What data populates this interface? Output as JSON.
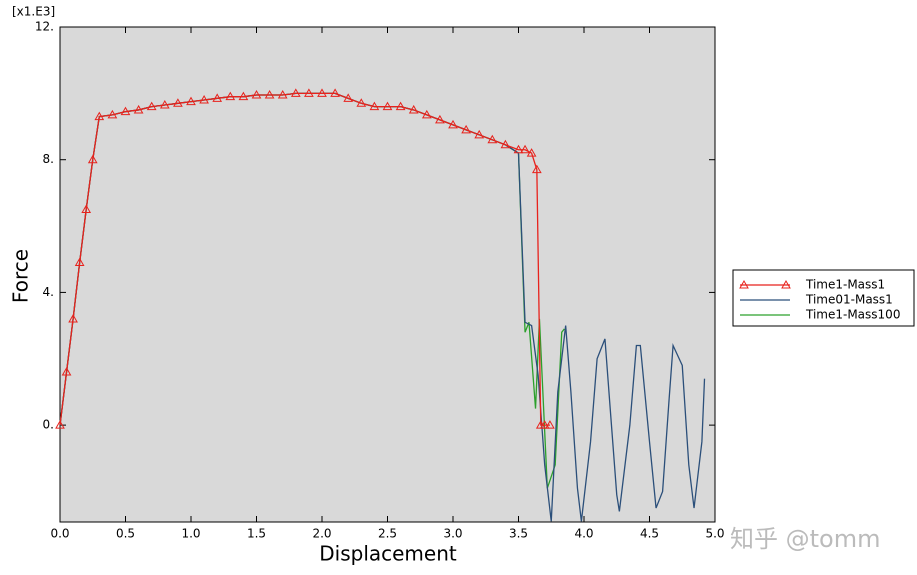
{
  "chart_data": {
    "type": "line",
    "y_scale_label": "[x1.E3]",
    "xlabel": "Displacement",
    "ylabel": "Force",
    "watermark": "知乎 @tomm",
    "xlim": [
      0,
      5
    ],
    "ylim": [
      -2.92,
      12
    ],
    "xticks": [
      {
        "value": 0,
        "label": "0.0"
      },
      0.5,
      {
        "value": 1,
        "label": "1.0"
      },
      1.5,
      {
        "value": 2,
        "label": "2.0"
      },
      2.5,
      {
        "value": 3,
        "label": "3.0"
      },
      3.5,
      {
        "value": 4,
        "label": "4.0"
      },
      4.5,
      {
        "value": 5,
        "label": "5.0"
      }
    ],
    "yticks": [
      {
        "value": 0,
        "label": "0."
      },
      {
        "value": 4,
        "label": "4."
      },
      {
        "value": 8,
        "label": "8."
      },
      {
        "value": 12,
        "label": "12."
      }
    ],
    "background": "#d9d9d9",
    "series": [
      {
        "name": "Time1-Mass1",
        "color": "#e8221c",
        "marker": "triangle",
        "x": [
          0,
          0.05,
          0.1,
          0.15,
          0.2,
          0.25,
          0.3,
          0.4,
          0.5,
          0.6,
          0.7,
          0.8,
          0.9,
          1.0,
          1.1,
          1.2,
          1.3,
          1.4,
          1.5,
          1.6,
          1.7,
          1.8,
          1.9,
          2.0,
          2.1,
          2.2,
          2.3,
          2.4,
          2.5,
          2.6,
          2.7,
          2.8,
          2.9,
          3.0,
          3.1,
          3.2,
          3.3,
          3.4,
          3.5,
          3.55,
          3.6,
          3.64,
          3.67,
          3.7,
          3.74
        ],
        "values": [
          0,
          1.6,
          3.2,
          4.9,
          6.5,
          8.0,
          9.3,
          9.35,
          9.45,
          9.5,
          9.6,
          9.65,
          9.7,
          9.75,
          9.8,
          9.85,
          9.9,
          9.9,
          9.95,
          9.95,
          9.95,
          10.0,
          10.0,
          10.0,
          10.0,
          9.85,
          9.7,
          9.6,
          9.6,
          9.6,
          9.5,
          9.35,
          9.2,
          9.05,
          8.9,
          8.75,
          8.6,
          8.45,
          8.3,
          8.3,
          8.2,
          7.7,
          0,
          0,
          0
        ]
      },
      {
        "name": "Time01-Mass1",
        "color": "#2b4f7a",
        "marker": "none",
        "x": [
          0,
          0.05,
          0.1,
          0.15,
          0.2,
          0.25,
          0.3,
          0.4,
          0.5,
          0.6,
          0.7,
          0.8,
          0.9,
          1.0,
          1.1,
          1.2,
          1.3,
          1.4,
          1.5,
          1.6,
          1.7,
          1.8,
          1.9,
          2.0,
          2.1,
          2.2,
          2.3,
          2.4,
          2.5,
          2.6,
          2.7,
          2.8,
          2.9,
          3.0,
          3.1,
          3.2,
          3.3,
          3.4,
          3.5,
          3.55,
          3.6,
          3.65,
          3.7,
          3.75,
          3.8,
          3.86,
          3.9,
          3.95,
          3.98,
          4.05,
          4.1,
          4.16,
          4.2,
          4.25,
          4.27,
          4.35,
          4.4,
          4.43,
          4.5,
          4.55,
          4.6,
          4.65,
          4.68,
          4.75,
          4.8,
          4.84,
          4.9,
          4.92
        ],
        "values": [
          0,
          1.6,
          3.2,
          4.9,
          6.5,
          8.0,
          9.3,
          9.35,
          9.45,
          9.5,
          9.6,
          9.65,
          9.7,
          9.75,
          9.8,
          9.85,
          9.9,
          9.9,
          9.95,
          9.95,
          9.95,
          10.0,
          10.0,
          10.0,
          10.0,
          9.85,
          9.7,
          9.6,
          9.6,
          9.6,
          9.5,
          9.35,
          9.2,
          9.05,
          8.9,
          8.75,
          8.6,
          8.45,
          8.2,
          3.1,
          3.0,
          1.5,
          -1.2,
          -2.9,
          1.0,
          3.0,
          1.0,
          -1.9,
          -2.9,
          -0.5,
          2.0,
          2.6,
          0.5,
          -2.1,
          -2.6,
          0,
          2.4,
          2.4,
          -0.5,
          -2.5,
          -2.0,
          0.8,
          2.4,
          1.8,
          -1.2,
          -2.5,
          -0.5,
          1.4
        ]
      },
      {
        "name": "Time1-Mass100",
        "color": "#2ca02c",
        "marker": "none",
        "x": [
          0,
          0.05,
          0.1,
          0.15,
          0.2,
          0.25,
          0.3,
          0.4,
          0.5,
          0.6,
          0.7,
          0.8,
          0.9,
          1.0,
          1.1,
          1.2,
          1.3,
          1.4,
          1.5,
          1.6,
          1.7,
          1.8,
          1.9,
          2.0,
          2.1,
          2.2,
          2.3,
          2.4,
          2.5,
          2.6,
          2.7,
          2.8,
          2.9,
          3.0,
          3.1,
          3.2,
          3.3,
          3.4,
          3.5,
          3.55,
          3.58,
          3.63,
          3.66,
          3.72,
          3.78,
          3.83,
          3.85
        ],
        "values": [
          0,
          1.6,
          3.2,
          4.9,
          6.5,
          8.0,
          9.3,
          9.35,
          9.45,
          9.5,
          9.6,
          9.65,
          9.7,
          9.75,
          9.8,
          9.85,
          9.9,
          9.9,
          9.95,
          9.95,
          9.95,
          10.0,
          10.0,
          10.0,
          10.0,
          9.85,
          9.7,
          9.6,
          9.6,
          9.6,
          9.5,
          9.35,
          9.2,
          9.05,
          8.9,
          8.75,
          8.6,
          8.45,
          8.2,
          2.8,
          3.1,
          0.5,
          3.2,
          -1.9,
          -1.2,
          2.8,
          2.9
        ]
      }
    ]
  }
}
